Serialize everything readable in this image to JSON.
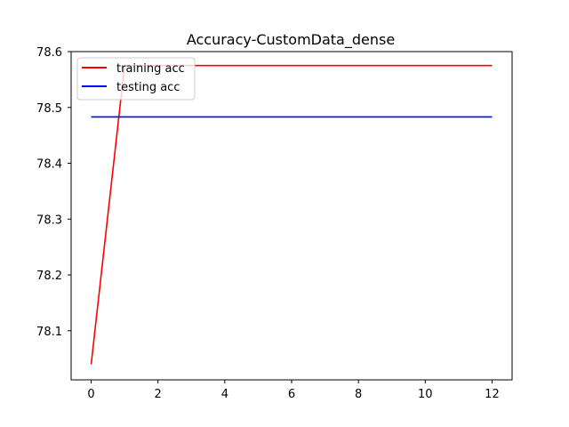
{
  "chart_data": {
    "type": "line",
    "title": "Accuracy-CustomData_dense",
    "xlabel": "",
    "ylabel": "",
    "xlim": [
      -0.6,
      12.6
    ],
    "ylim": [
      78.012,
      78.6
    ],
    "x_ticks": [
      0,
      2,
      4,
      6,
      8,
      10,
      12
    ],
    "y_ticks": [
      78.1,
      78.2,
      78.3,
      78.4,
      78.5,
      78.6
    ],
    "x_tick_labels": [
      "0",
      "2",
      "4",
      "6",
      "8",
      "10",
      "12"
    ],
    "y_tick_labels": [
      "78.1",
      "78.2",
      "78.3",
      "78.4",
      "78.5",
      "78.6"
    ],
    "grid": false,
    "legend_position": "top-left",
    "series": [
      {
        "name": "training acc",
        "color": "#ff0000",
        "x": [
          0,
          1,
          2,
          3,
          4,
          5,
          6,
          7,
          8,
          9,
          10,
          11,
          12
        ],
        "values": [
          78.04,
          78.575,
          78.575,
          78.575,
          78.575,
          78.575,
          78.575,
          78.575,
          78.575,
          78.575,
          78.575,
          78.575,
          78.575
        ]
      },
      {
        "name": "testing acc",
        "color": "#0000ff",
        "x": [
          0,
          1,
          2,
          3,
          4,
          5,
          6,
          7,
          8,
          9,
          10,
          11,
          12
        ],
        "values": [
          78.483,
          78.483,
          78.483,
          78.483,
          78.483,
          78.483,
          78.483,
          78.483,
          78.483,
          78.483,
          78.483,
          78.483,
          78.483
        ]
      }
    ]
  }
}
